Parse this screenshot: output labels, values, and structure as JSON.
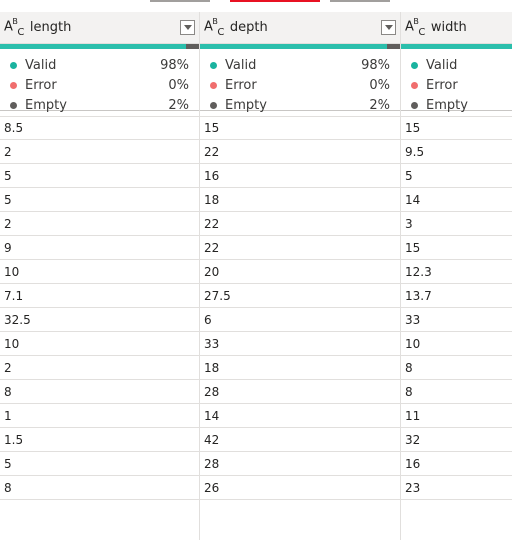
{
  "columns": [
    {
      "name": "length",
      "type_icon": "text-type-icon",
      "valid_pct": "98%",
      "error_pct": "0%",
      "empty_pct": "2%"
    },
    {
      "name": "depth",
      "type_icon": "text-type-icon",
      "valid_pct": "98%",
      "error_pct": "0%",
      "empty_pct": "2%"
    },
    {
      "name": "width",
      "type_icon": "text-type-icon",
      "valid_pct": "",
      "error_pct": "",
      "empty_pct": ""
    }
  ],
  "labels": {
    "valid": "Valid",
    "error": "Error",
    "empty": "Empty"
  },
  "colors": {
    "valid": "#1ab39f",
    "error": "#f06e6e",
    "empty": "#605e5c"
  },
  "rows": [
    [
      "8.5",
      "15",
      "15"
    ],
    [
      "2",
      "22",
      "9.5"
    ],
    [
      "5",
      "16",
      "5"
    ],
    [
      "5",
      "18",
      "14"
    ],
    [
      "2",
      "22",
      "3"
    ],
    [
      "9",
      "22",
      "15"
    ],
    [
      "10",
      "20",
      "12.3"
    ],
    [
      "7.1",
      "27.5",
      "13.7"
    ],
    [
      "32.5",
      "6",
      "33"
    ],
    [
      "10",
      "33",
      "10"
    ],
    [
      "2",
      "18",
      "8"
    ],
    [
      "8",
      "28",
      "8"
    ],
    [
      "1",
      "14",
      "11"
    ],
    [
      "1.5",
      "42",
      "32"
    ],
    [
      "5",
      "28",
      "16"
    ],
    [
      "8",
      "26",
      "23"
    ]
  ]
}
